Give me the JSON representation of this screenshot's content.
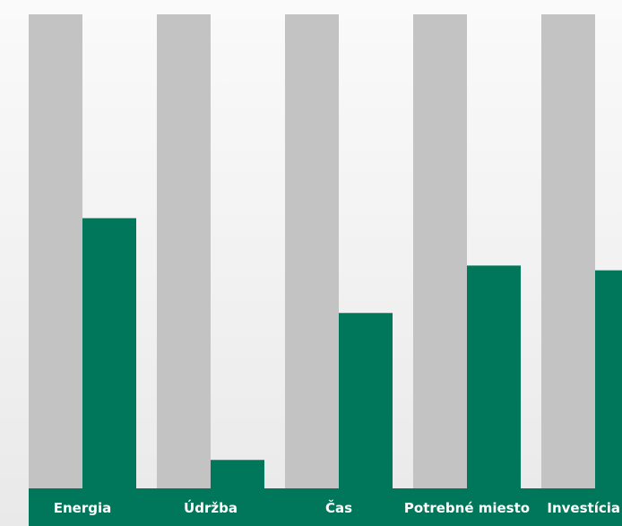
{
  "chart_data": {
    "type": "bar",
    "categories": [
      "Energia",
      "Údržba",
      "Čas",
      "Potrebné miesto",
      "Investícia"
    ],
    "series": [
      {
        "values": [
          100,
          100,
          100,
          100,
          100
        ]
      },
      {
        "values": [
          57,
          6,
          37,
          47,
          46
        ]
      }
    ],
    "ylim": [
      0,
      100
    ],
    "grid": false,
    "legend": "none",
    "colors": {
      "series_1": "#c3c3c3",
      "series_2": "#00775a",
      "category_band": "#00775a",
      "category_text": "#ffffff"
    }
  }
}
